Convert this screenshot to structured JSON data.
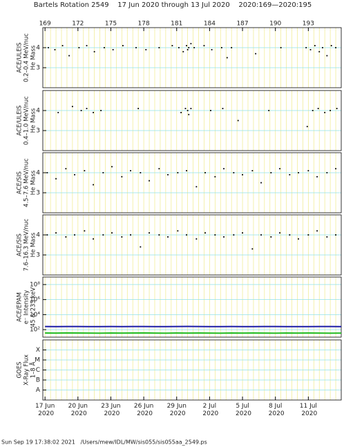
{
  "chart_data": [
    {
      "type": "scatter",
      "title": "Bartels Rotation 2549    17 Jun 2020 through 13 Jul 2020    2020:169—2020:195",
      "ylabel": [
        "ACE/ULEIS",
        "0.2–0.4 MeV/nuc",
        "He Mass"
      ],
      "xlim": [
        168.8,
        196
      ],
      "x2ticks": [
        169,
        172,
        175,
        178,
        181,
        184,
        187,
        190,
        193
      ],
      "ylim": [
        2,
        5
      ],
      "yticks": [
        3,
        4
      ],
      "color": "#000000",
      "x": [
        169.3,
        169.9,
        170.6,
        171.2,
        172.1,
        172.8,
        173.5,
        174.4,
        175.2,
        176.1,
        177.3,
        178.2,
        179.4,
        180.6,
        181.2,
        181.6,
        181.9,
        182.0,
        182.1,
        182.3,
        182.6,
        183.5,
        184.2,
        185.1,
        185.6,
        186.0,
        188.2,
        190.5,
        192.8,
        193.2,
        193.6,
        194.0,
        194.3,
        194.7,
        195.1,
        195.5
      ],
      "values": [
        4.0,
        3.9,
        4.1,
        3.6,
        4.0,
        4.1,
        3.8,
        4.0,
        3.9,
        4.1,
        4.0,
        3.9,
        4.0,
        4.1,
        4.0,
        3.8,
        4.1,
        3.9,
        4.0,
        4.2,
        4.0,
        4.1,
        3.9,
        4.0,
        3.5,
        4.0,
        3.7,
        4.0,
        4.0,
        3.9,
        4.1,
        3.8,
        4.0,
        3.6,
        4.1,
        4.0
      ]
    },
    {
      "type": "scatter",
      "ylabel": [
        "ACE/ULEIS",
        "0.4–1.0 MeV/nuc",
        "He Mass"
      ],
      "xlim": [
        168.8,
        196
      ],
      "ylim": [
        2,
        5
      ],
      "yticks": [
        3,
        4
      ],
      "color": "#000000",
      "x": [
        170.2,
        171.5,
        172.3,
        172.8,
        173.4,
        174.1,
        177.5,
        181.4,
        181.8,
        182.0,
        182.1,
        182.3,
        184.1,
        185.2,
        186.6,
        189.4,
        192.9,
        193.4,
        193.9,
        194.5,
        195.0,
        195.6
      ],
      "values": [
        3.9,
        4.2,
        4.0,
        4.1,
        3.9,
        4.0,
        4.1,
        3.9,
        4.1,
        4.0,
        3.8,
        4.1,
        4.0,
        4.1,
        3.5,
        4.0,
        3.2,
        4.0,
        4.1,
        3.9,
        4.0,
        4.1
      ]
    },
    {
      "type": "scatter",
      "ylabel": [
        "ACE/SIS",
        "4.5–7.6 MeV/nuc",
        "He Mass"
      ],
      "xlim": [
        168.8,
        196
      ],
      "ylim": [
        2,
        5
      ],
      "yticks": [
        3,
        4
      ],
      "color": "#000000",
      "x": [
        169.2,
        170.0,
        170.9,
        171.7,
        172.6,
        173.4,
        174.3,
        175.1,
        176.0,
        176.8,
        177.7,
        178.5,
        179.4,
        180.2,
        181.1,
        181.9,
        182.8,
        183.6,
        184.5,
        185.3,
        186.2,
        187.0,
        187.9,
        188.7,
        189.6,
        190.4,
        191.3,
        192.1,
        193.0,
        193.8,
        194.7,
        195.5
      ],
      "values": [
        4.0,
        3.7,
        4.2,
        3.9,
        4.1,
        3.4,
        4.0,
        4.3,
        3.8,
        4.1,
        4.0,
        3.6,
        4.2,
        3.9,
        4.0,
        4.1,
        3.3,
        4.0,
        3.8,
        4.2,
        4.0,
        3.9,
        4.1,
        3.5,
        4.0,
        4.2,
        3.9,
        4.0,
        4.1,
        3.8,
        4.0,
        4.2
      ]
    },
    {
      "type": "scatter",
      "ylabel": [
        "ACE/SIS",
        "7.6–16.3 MeV/nuc",
        "He Mass"
      ],
      "xlim": [
        168.8,
        196
      ],
      "ylim": [
        2,
        5
      ],
      "yticks": [
        3,
        4
      ],
      "color": "#000000",
      "x": [
        169.2,
        170.0,
        170.9,
        171.7,
        172.6,
        173.4,
        174.3,
        175.1,
        176.0,
        176.8,
        177.7,
        178.5,
        179.4,
        180.2,
        181.1,
        181.9,
        182.8,
        183.6,
        184.5,
        185.3,
        186.2,
        187.0,
        187.9,
        188.7,
        189.6,
        190.4,
        191.3,
        192.1,
        193.0,
        193.8,
        194.7,
        195.5
      ],
      "values": [
        4.0,
        4.1,
        3.9,
        4.0,
        4.2,
        3.8,
        4.0,
        4.1,
        3.9,
        4.0,
        3.4,
        4.1,
        4.0,
        3.9,
        4.2,
        4.0,
        3.8,
        4.1,
        4.0,
        3.9,
        4.0,
        4.1,
        3.3,
        4.0,
        3.9,
        4.1,
        4.0,
        3.8,
        4.0,
        4.2,
        3.9,
        4.0
      ]
    },
    {
      "type": "line",
      "ylabel": [
        "ACE/EPAM",
        "e⁻ Intensity",
        "45 & 235 keV"
      ],
      "xlim": [
        168.8,
        196
      ],
      "log": true,
      "ylim": [
        10,
        1000000000
      ],
      "yticks": [
        {
          "value": 100,
          "label": "10²"
        },
        {
          "value": 10000,
          "label": "10⁴"
        },
        {
          "value": 1000000,
          "label": "10⁶"
        },
        {
          "value": 100000000,
          "label": "10⁸"
        }
      ],
      "x": [
        169,
        170,
        171,
        172,
        173,
        174,
        175,
        176,
        177,
        178,
        179,
        180,
        181,
        182,
        183,
        184,
        185,
        186,
        187,
        188,
        189,
        190,
        191,
        192,
        193,
        194,
        195,
        196
      ],
      "series": [
        {
          "color": "#1a1aa6",
          "values": [
            260,
            255,
            262,
            258,
            250,
            255,
            260,
            252,
            258,
            262,
            255,
            250,
            258,
            265,
            260,
            255,
            250,
            258,
            255,
            252,
            260,
            258,
            255,
            250,
            255,
            258,
            260,
            255
          ]
        },
        {
          "color": "#22bb22",
          "values": [
            36,
            35,
            37,
            36,
            35,
            34,
            36,
            35,
            36,
            37,
            35,
            34,
            36,
            35,
            36,
            35,
            34,
            36,
            35,
            36,
            35,
            34,
            36,
            35,
            36,
            35,
            34,
            35
          ]
        }
      ]
    },
    {
      "type": "scatter",
      "ylabel": [
        "GOES",
        "X-Ray Flux",
        "1–8 Å"
      ],
      "xlim": [
        168.8,
        196
      ],
      "log": true,
      "ylim": [
        1e-09,
        0.001
      ],
      "yticks": [
        {
          "value": 1e-08,
          "label": "A"
        },
        {
          "value": 1e-07,
          "label": "B"
        },
        {
          "value": 1e-06,
          "label": "C"
        },
        {
          "value": 1e-05,
          "label": "M"
        },
        {
          "value": 0.0001,
          "label": "X"
        }
      ],
      "xticks": [
        {
          "value": 169,
          "label": "17 Jun 2020"
        },
        {
          "value": 172,
          "label": "20 Jun 2020"
        },
        {
          "value": 175,
          "label": "23 Jun 2020"
        },
        {
          "value": 178,
          "label": "26 Jun 2020"
        },
        {
          "value": 181,
          "label": "29 Jun 2020"
        },
        {
          "value": 184,
          "label": "2 Jul 2020"
        },
        {
          "value": 187,
          "label": "5 Jul 2020"
        },
        {
          "value": 190,
          "label": "8 Jul 2020"
        },
        {
          "value": 193,
          "label": "11 Jul 2020"
        }
      ]
    }
  ],
  "footer": "Sun Sep 19 17:38:02 2021   /Users/mew/IDL/MW/sis055/sis055aa_2549.ps"
}
